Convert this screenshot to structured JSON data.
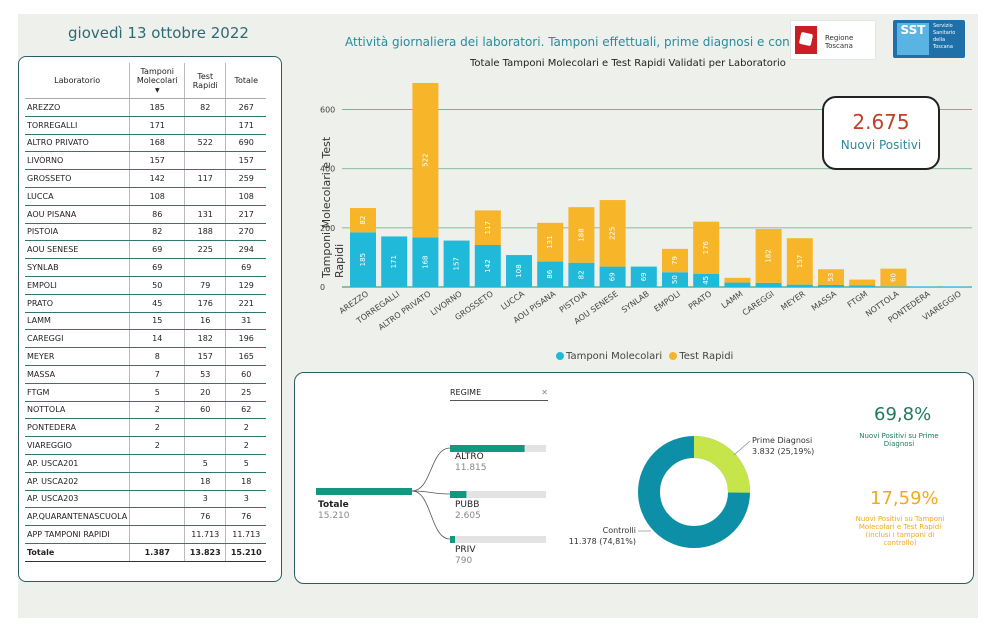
{
  "header": {
    "date": "giovedì 13 ottobre 2022",
    "subtitle": "Attività giornaliera dei laboratori. Tamponi effettuali, prime diagnosi e controlli",
    "logo_regione": "Regione Toscana",
    "logo_sst_abbr": "SST",
    "logo_sst_text": "Servizio Sanitario della Toscana"
  },
  "colors": {
    "tamponi": "#21b9da",
    "test_rapidi": "#f7b52a",
    "teal": "#0f9a80",
    "donut_main": "#0e8fa8",
    "donut_sec": "#c5e54a"
  },
  "table": {
    "headers": [
      "Laboratorio",
      "Tamponi Molecolari",
      "Test Rapidi",
      "Totale"
    ],
    "rows": [
      [
        "AREZZO",
        "185",
        "82",
        "267"
      ],
      [
        "TORREGALLI",
        "171",
        "",
        "171"
      ],
      [
        "ALTRO PRIVATO",
        "168",
        "522",
        "690"
      ],
      [
        "LIVORNO",
        "157",
        "",
        "157"
      ],
      [
        "GROSSETO",
        "142",
        "117",
        "259"
      ],
      [
        "LUCCA",
        "108",
        "",
        "108"
      ],
      [
        "AOU PISANA",
        "86",
        "131",
        "217"
      ],
      [
        "PISTOIA",
        "82",
        "188",
        "270"
      ],
      [
        "AOU SENESE",
        "69",
        "225",
        "294"
      ],
      [
        "SYNLAB",
        "69",
        "",
        "69"
      ],
      [
        "EMPOLI",
        "50",
        "79",
        "129"
      ],
      [
        "PRATO",
        "45",
        "176",
        "221"
      ],
      [
        "LAMM",
        "15",
        "16",
        "31"
      ],
      [
        "CAREGGI",
        "14",
        "182",
        "196"
      ],
      [
        "MEYER",
        "8",
        "157",
        "165"
      ],
      [
        "MASSA",
        "7",
        "53",
        "60"
      ],
      [
        "FTGM",
        "5",
        "20",
        "25"
      ],
      [
        "NOTTOLA",
        "2",
        "60",
        "62"
      ],
      [
        "PONTEDERA",
        "2",
        "",
        "2"
      ],
      [
        "VIAREGGIO",
        "2",
        "",
        "2"
      ],
      [
        "AP. USCA201",
        "",
        "5",
        "5"
      ],
      [
        "AP. USCA202",
        "",
        "18",
        "18"
      ],
      [
        "AP. USCA203",
        "",
        "3",
        "3"
      ],
      [
        "AP.QUARANTENASCUOLA",
        "",
        "76",
        "76"
      ],
      [
        "APP TAMPONI RAPIDI",
        "",
        "11.713",
        "11.713"
      ]
    ],
    "total": [
      "Totale",
      "1.387",
      "13.823",
      "15.210"
    ]
  },
  "chart_data": {
    "type": "bar",
    "title": "Totale Tamponi Molecolari e Test Rapidi Validati per Laboratorio",
    "ylabel": "Tamponi Molecolari e Test Rapidi",
    "ylim": [
      0,
      700
    ],
    "yticks": [
      "0",
      "200",
      "400",
      "600"
    ],
    "categories": [
      "AREZZO",
      "TORREGALLI",
      "ALTRO PRIVATO",
      "LIVORNO",
      "GROSSETO",
      "LUCCA",
      "AOU PISANA",
      "PISTOIA",
      "AOU SENESE",
      "SYNLAB",
      "EMPOLI",
      "PRATO",
      "LAMM",
      "CAREGGI",
      "MEYER",
      "MASSA",
      "FTGM",
      "NOTTOLA",
      "PONTEDERA",
      "VIAREGGIO"
    ],
    "series": [
      {
        "name": "Tamponi Molecolari",
        "values": [
          185,
          171,
          168,
          157,
          142,
          108,
          86,
          82,
          69,
          69,
          50,
          45,
          15,
          14,
          8,
          7,
          5,
          2,
          2,
          2
        ],
        "labels": [
          "185",
          "171",
          "168",
          "157",
          "142",
          "108",
          "86",
          "82",
          "69",
          "69",
          "50",
          "45",
          "",
          "",
          "",
          "",
          "",
          "",
          "",
          ""
        ]
      },
      {
        "name": "Test Rapidi",
        "values": [
          82,
          0,
          522,
          0,
          117,
          0,
          131,
          188,
          225,
          0,
          79,
          176,
          16,
          182,
          157,
          53,
          20,
          60,
          0,
          0
        ],
        "labels": [
          "82",
          "",
          "522",
          "",
          "117",
          "",
          "131",
          "188",
          "225",
          "",
          "79",
          "176",
          "",
          "182",
          "157",
          "53",
          "",
          "60",
          "",
          ""
        ]
      }
    ],
    "legend_position": "bottom"
  },
  "kpi": {
    "nuovi_positivi_value": "2.675",
    "nuovi_positivi_label": "Nuovi Positivi"
  },
  "decomposition": {
    "filter_label": "REGIME",
    "root": {
      "label": "Totale",
      "value": "15.210"
    },
    "children": [
      {
        "label": "ALTRO",
        "value": "11.815",
        "fraction": 0.777
      },
      {
        "label": "PUBB",
        "value": "2.605",
        "fraction": 0.171
      },
      {
        "label": "PRIV",
        "value": "790",
        "fraction": 0.052
      }
    ]
  },
  "donut": {
    "segments": [
      {
        "label": "Prime Diagnosi",
        "value": "3.832 (25,19%)",
        "fraction": 0.2519
      },
      {
        "label": "Controlli",
        "value": "11.378 (74,81%)",
        "fraction": 0.7481
      }
    ]
  },
  "ratios": {
    "pct_prime": "69,8%",
    "pct_prime_label": "Nuovi Positivi su Prime Diagnosi",
    "pct_tamponi": "17,59%",
    "pct_tamponi_label": "Nuovi Positivi su Tamponi Molecolari e Test Rapidi (inclusi i tamponi di controllo)"
  }
}
